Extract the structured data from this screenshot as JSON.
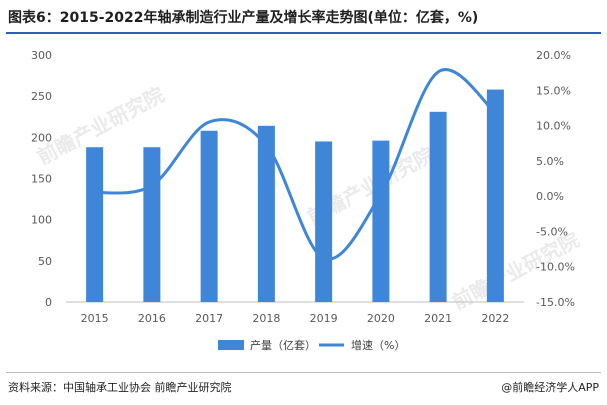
{
  "title": "图表6：2015-2022年轴承制造行业产量及增长率走势图(单位：亿套，%)",
  "source": "资料来源：中国轴承工业协会 前瞻产业研究院",
  "credit": "@前瞻经济学人APP",
  "watermark": "前瞻产业研究院",
  "colors": {
    "bar": "#3f86d8",
    "line": "#3f86d8",
    "title_rule": "#2d5fb0"
  },
  "chart_data": {
    "type": "bar",
    "categories": [
      "2015",
      "2016",
      "2017",
      "2018",
      "2019",
      "2020",
      "2021",
      "2022"
    ],
    "series": [
      {
        "name": "产量（亿套）",
        "type": "bar",
        "axis": "left",
        "values": [
          188,
          188,
          208,
          214,
          195,
          196,
          231,
          258
        ]
      },
      {
        "name": "增速（%）",
        "type": "line",
        "axis": "right",
        "values": [
          0.5,
          1.5,
          10.5,
          7.2,
          -8.8,
          0.3,
          17.6,
          11.8
        ]
      }
    ],
    "ylim_left": [
      0,
      300
    ],
    "yticks_left": [
      "0",
      "50",
      "100",
      "150",
      "200",
      "250",
      "300"
    ],
    "ylim_right": [
      -15,
      20
    ],
    "yticks_right": [
      "-15.0%",
      "-10.0%",
      "-5.0%",
      "0.0%",
      "5.0%",
      "10.0%",
      "15.0%",
      "20.0%"
    ],
    "legend_position": "bottom",
    "grid": false
  }
}
